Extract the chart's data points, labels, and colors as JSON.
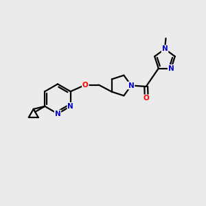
{
  "background_color": "#ebebeb",
  "bond_color": "#000000",
  "atom_color_N": "#0000cc",
  "atom_color_O": "#ff0000",
  "line_width": 1.6,
  "figsize": [
    3.0,
    3.0
  ],
  "dpi": 100,
  "xlim": [
    0,
    10
  ],
  "ylim": [
    0,
    10
  ]
}
